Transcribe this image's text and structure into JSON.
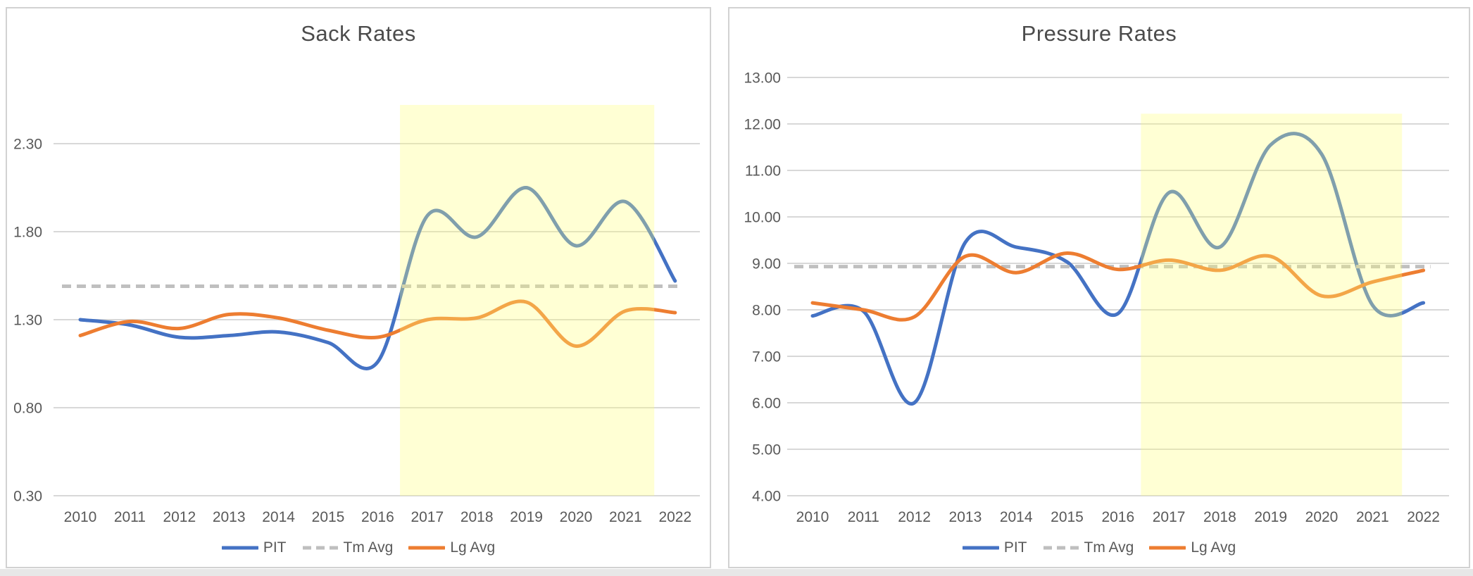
{
  "colors": {
    "pit": "#4472C4",
    "tm_avg": "#BFBFBF",
    "lg_avg": "#ED7D31",
    "gridline": "#D8D8D8",
    "axis_text": "#595959",
    "title_text": "#4B4B4B",
    "panel_border": "#D2D2D2",
    "panel_background": "#FFFFFF",
    "page_bottom_strip": "#E7E7E7",
    "highlight_fill": "rgba(255,255,120,0.32)"
  },
  "legend": {
    "items": [
      {
        "label": "PIT",
        "style": "solid",
        "color_key": "pit"
      },
      {
        "label": "Tm Avg",
        "style": "dashed",
        "color_key": "tm_avg"
      },
      {
        "label": "Lg Avg",
        "style": "solid",
        "color_key": "lg_avg"
      }
    ]
  },
  "chart_data": [
    {
      "type": "line",
      "title": "Sack Rates",
      "x": [
        2010,
        2011,
        2012,
        2013,
        2014,
        2015,
        2016,
        2017,
        2018,
        2019,
        2020,
        2021,
        2022
      ],
      "xlabel": "",
      "ylabel": "",
      "y_ticks": [
        0.3,
        0.8,
        1.3,
        1.8,
        2.3
      ],
      "y_tick_decimals": 2,
      "ylim": [
        0.3,
        2.55
      ],
      "grid": true,
      "legend_position": "bottom",
      "series": [
        {
          "name": "PIT",
          "style": "solid",
          "smooth": true,
          "color_key": "pit",
          "values": [
            1.3,
            1.27,
            1.2,
            1.21,
            1.23,
            1.17,
            1.06,
            1.89,
            1.77,
            2.05,
            1.72,
            1.97,
            1.52
          ]
        },
        {
          "name": "Tm Avg",
          "style": "dashed",
          "smooth": false,
          "color_key": "tm_avg",
          "values": [
            1.49,
            1.49,
            1.49,
            1.49,
            1.49,
            1.49,
            1.49,
            1.49,
            1.49,
            1.49,
            1.49,
            1.49,
            1.49
          ]
        },
        {
          "name": "Lg Avg",
          "style": "solid",
          "smooth": true,
          "color_key": "lg_avg",
          "values": [
            1.21,
            1.29,
            1.25,
            1.33,
            1.31,
            1.24,
            1.2,
            1.3,
            1.31,
            1.4,
            1.15,
            1.35,
            1.34
          ]
        }
      ],
      "highlight_region": {
        "x_start": 2016.45,
        "x_end": 2021.58,
        "y_top": 2.52,
        "y_bottom": 0.3
      }
    },
    {
      "type": "line",
      "title": "Pressure Rates",
      "x": [
        2010,
        2011,
        2012,
        2013,
        2014,
        2015,
        2016,
        2017,
        2018,
        2019,
        2020,
        2021,
        2022
      ],
      "xlabel": "",
      "ylabel": "",
      "y_ticks": [
        4.0,
        5.0,
        6.0,
        7.0,
        8.0,
        9.0,
        10.0,
        11.0,
        12.0,
        13.0
      ],
      "y_tick_decimals": 2,
      "ylim": [
        4.0,
        13.25
      ],
      "grid": true,
      "legend_position": "bottom",
      "series": [
        {
          "name": "PIT",
          "style": "solid",
          "smooth": true,
          "color_key": "pit",
          "values": [
            7.87,
            7.97,
            6.0,
            9.45,
            9.35,
            9.03,
            7.92,
            10.52,
            9.35,
            11.55,
            11.35,
            8.1,
            8.15
          ]
        },
        {
          "name": "Tm Avg",
          "style": "dashed",
          "smooth": false,
          "color_key": "tm_avg",
          "values": [
            8.93,
            8.93,
            8.93,
            8.93,
            8.93,
            8.93,
            8.93,
            8.93,
            8.93,
            8.93,
            8.93,
            8.93,
            8.93
          ]
        },
        {
          "name": "Lg Avg",
          "style": "solid",
          "smooth": true,
          "color_key": "lg_avg",
          "values": [
            8.15,
            8.0,
            7.85,
            9.15,
            8.8,
            9.22,
            8.87,
            9.07,
            8.85,
            9.15,
            8.3,
            8.6,
            8.85
          ]
        }
      ],
      "highlight_region": {
        "x_start": 2016.45,
        "x_end": 2021.58,
        "y_top": 12.22,
        "y_bottom": 4.0
      }
    }
  ]
}
